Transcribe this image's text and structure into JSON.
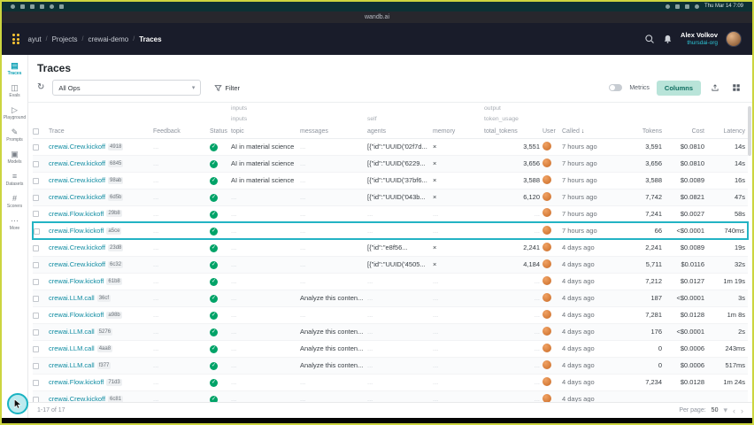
{
  "colors": {
    "accent_teal": "#13a9ba",
    "status_green": "#00a368",
    "logo_yellow": "#ffc933",
    "frame_border": "#ccd53f",
    "avatar_orange": "#e8833a"
  },
  "menubar": {
    "clock": "Thu Mar 14 7:09"
  },
  "titlebar": {
    "title": "wandb.ai"
  },
  "header": {
    "breadcrumb": [
      "ayut",
      "Projects",
      "crewai-demo",
      "Traces"
    ],
    "user_name": "Alex Volkov",
    "user_org": "thursdai-org"
  },
  "sidebar": {
    "items": [
      {
        "name": "traces",
        "label": "Traces",
        "icon": "▤",
        "active": true
      },
      {
        "name": "evals",
        "label": "Evals",
        "icon": "◫",
        "active": false
      },
      {
        "name": "playground",
        "label": "Playground",
        "icon": "▷",
        "active": false
      },
      {
        "name": "prompts",
        "label": "Prompts",
        "icon": "✎",
        "active": false
      },
      {
        "name": "models",
        "label": "Models",
        "icon": "▣",
        "active": false
      },
      {
        "name": "datasets",
        "label": "Datasets",
        "icon": "≡",
        "active": false
      },
      {
        "name": "scorers",
        "label": "Scorers",
        "icon": "#",
        "active": false
      },
      {
        "name": "more",
        "label": "More",
        "icon": "⋯",
        "active": false
      }
    ]
  },
  "page": {
    "title": "Traces"
  },
  "toolbar": {
    "refresh_icon": "↻",
    "ops_filter_value": "All Ops",
    "filter_label": "Filter",
    "metrics_label": "Metrics",
    "columns_label": "Columns"
  },
  "table": {
    "groups": {
      "inputs_top": "inputs",
      "output_top": "output",
      "inputs": "inputs",
      "self": "self",
      "token_usage": "token_usage"
    },
    "headers": {
      "trace": "Trace",
      "feedback": "Feedback",
      "status": "Status",
      "topic": "topic",
      "messages": "messages",
      "agents": "agents",
      "memory": "memory",
      "total_tokens": "total_tokens",
      "user": "User",
      "called": "Called",
      "tokens": "Tokens",
      "cost": "Cost",
      "latency": "Latency"
    },
    "sort": {
      "column": "called",
      "direction": "desc",
      "icon": "↓"
    },
    "rows": [
      {
        "trace": "crewai.Crew.kickoff",
        "badge": "4918",
        "topic": "AI in material science",
        "messages": "",
        "agents": "[{\"id\":\"UUID('02f7d...",
        "memory": "x",
        "total_tokens": "3,551",
        "called": "7 hours ago",
        "tokens": "3,591",
        "cost": "$0.0810",
        "latency": "14s",
        "selected": false
      },
      {
        "trace": "crewai.Crew.kickoff",
        "badge": "6845",
        "topic": "AI in material science",
        "messages": "",
        "agents": "[{\"id\":\"UUID('6229...",
        "memory": "x",
        "total_tokens": "3,656",
        "called": "7 hours ago",
        "tokens": "3,656",
        "cost": "$0.0810",
        "latency": "14s",
        "selected": false
      },
      {
        "trace": "crewai.Crew.kickoff",
        "badge": "98ab",
        "topic": "AI in material science",
        "messages": "",
        "agents": "[{\"id\":\"UUID('37bf6...",
        "memory": "x",
        "total_tokens": "3,588",
        "called": "7 hours ago",
        "tokens": "3,588",
        "cost": "$0.0089",
        "latency": "16s",
        "selected": false
      },
      {
        "trace": "crewai.Crew.kickoff",
        "badge": "6d5b",
        "topic": "",
        "messages": "",
        "agents": "[{\"id\":\"UUID('043b...",
        "memory": "x",
        "total_tokens": "6,120",
        "called": "7 hours ago",
        "tokens": "7,742",
        "cost": "$0.0821",
        "latency": "47s",
        "selected": false
      },
      {
        "trace": "crewai.Flow.kickoff",
        "badge": "29b8",
        "topic": "",
        "messages": "",
        "agents": "",
        "memory": "",
        "total_tokens": "",
        "called": "7 hours ago",
        "tokens": "7,241",
        "cost": "$0.0027",
        "latency": "58s",
        "selected": false
      },
      {
        "trace": "crewai.Flow.kickoff",
        "badge": "a5ce",
        "topic": "",
        "messages": "",
        "agents": "",
        "memory": "",
        "total_tokens": "",
        "called": "7 hours ago",
        "tokens": "66",
        "cost": "<$0.0001",
        "latency": "740ms",
        "selected": true
      },
      {
        "trace": "crewai.Crew.kickoff",
        "badge": "23d8",
        "topic": "",
        "messages": "",
        "agents": "[{\"id\":\"e8f56...",
        "memory": "x",
        "total_tokens": "2,241",
        "called": "4 days ago",
        "tokens": "2,241",
        "cost": "$0.0089",
        "latency": "19s",
        "selected": false
      },
      {
        "trace": "crewai.Crew.kickoff",
        "badge": "6c32",
        "topic": "",
        "messages": "",
        "agents": "[{\"id\":\"UUID('4505...",
        "memory": "x",
        "total_tokens": "4,184",
        "called": "4 days ago",
        "tokens": "5,711",
        "cost": "$0.0116",
        "latency": "32s",
        "selected": false
      },
      {
        "trace": "crewai.Flow.kickoff",
        "badge": "61b8",
        "topic": "",
        "messages": "",
        "agents": "",
        "memory": "",
        "total_tokens": "",
        "called": "4 days ago",
        "tokens": "7,212",
        "cost": "$0.0127",
        "latency": "1m 19s",
        "selected": false
      },
      {
        "trace": "crewai.LLM.call",
        "badge": "36cf",
        "topic": "",
        "messages": "Analyze this conten...",
        "agents": "",
        "memory": "",
        "total_tokens": "",
        "called": "4 days ago",
        "tokens": "187",
        "cost": "<$0.0001",
        "latency": "3s",
        "selected": false
      },
      {
        "trace": "crewai.Flow.kickoff",
        "badge": "a98b",
        "topic": "",
        "messages": "",
        "agents": "",
        "memory": "",
        "total_tokens": "",
        "called": "4 days ago",
        "tokens": "7,281",
        "cost": "$0.0128",
        "latency": "1m 8s",
        "selected": false
      },
      {
        "trace": "crewai.LLM.call",
        "badge": "5276",
        "topic": "",
        "messages": "Analyze this conten...",
        "agents": "",
        "memory": "",
        "total_tokens": "",
        "called": "4 days ago",
        "tokens": "176",
        "cost": "<$0.0001",
        "latency": "2s",
        "selected": false
      },
      {
        "trace": "crewai.LLM.call",
        "badge": "4aa8",
        "topic": "",
        "messages": "Analyze this conten...",
        "agents": "",
        "memory": "",
        "total_tokens": "",
        "called": "4 days ago",
        "tokens": "0",
        "cost": "$0.0006",
        "latency": "243ms",
        "selected": false
      },
      {
        "trace": "crewai.LLM.call",
        "badge": "f377",
        "topic": "",
        "messages": "Analyze this conten...",
        "agents": "",
        "memory": "",
        "total_tokens": "",
        "called": "4 days ago",
        "tokens": "0",
        "cost": "$0.0006",
        "latency": "517ms",
        "selected": false
      },
      {
        "trace": "crewai.Flow.kickoff",
        "badge": "71d3",
        "topic": "",
        "messages": "",
        "agents": "",
        "memory": "",
        "total_tokens": "",
        "called": "4 days ago",
        "tokens": "7,234",
        "cost": "$0.0128",
        "latency": "1m 24s",
        "selected": false
      },
      {
        "trace": "crewai.Crew.kickoff",
        "badge": "6c81",
        "topic": "",
        "messages": "",
        "agents": "",
        "memory": "",
        "total_tokens": "",
        "called": "4 days ago",
        "tokens": "",
        "cost": "",
        "latency": "",
        "selected": false
      }
    ]
  },
  "pagination": {
    "range": "1-17 of 17",
    "per_page_label": "Per page:",
    "per_page": "50"
  }
}
